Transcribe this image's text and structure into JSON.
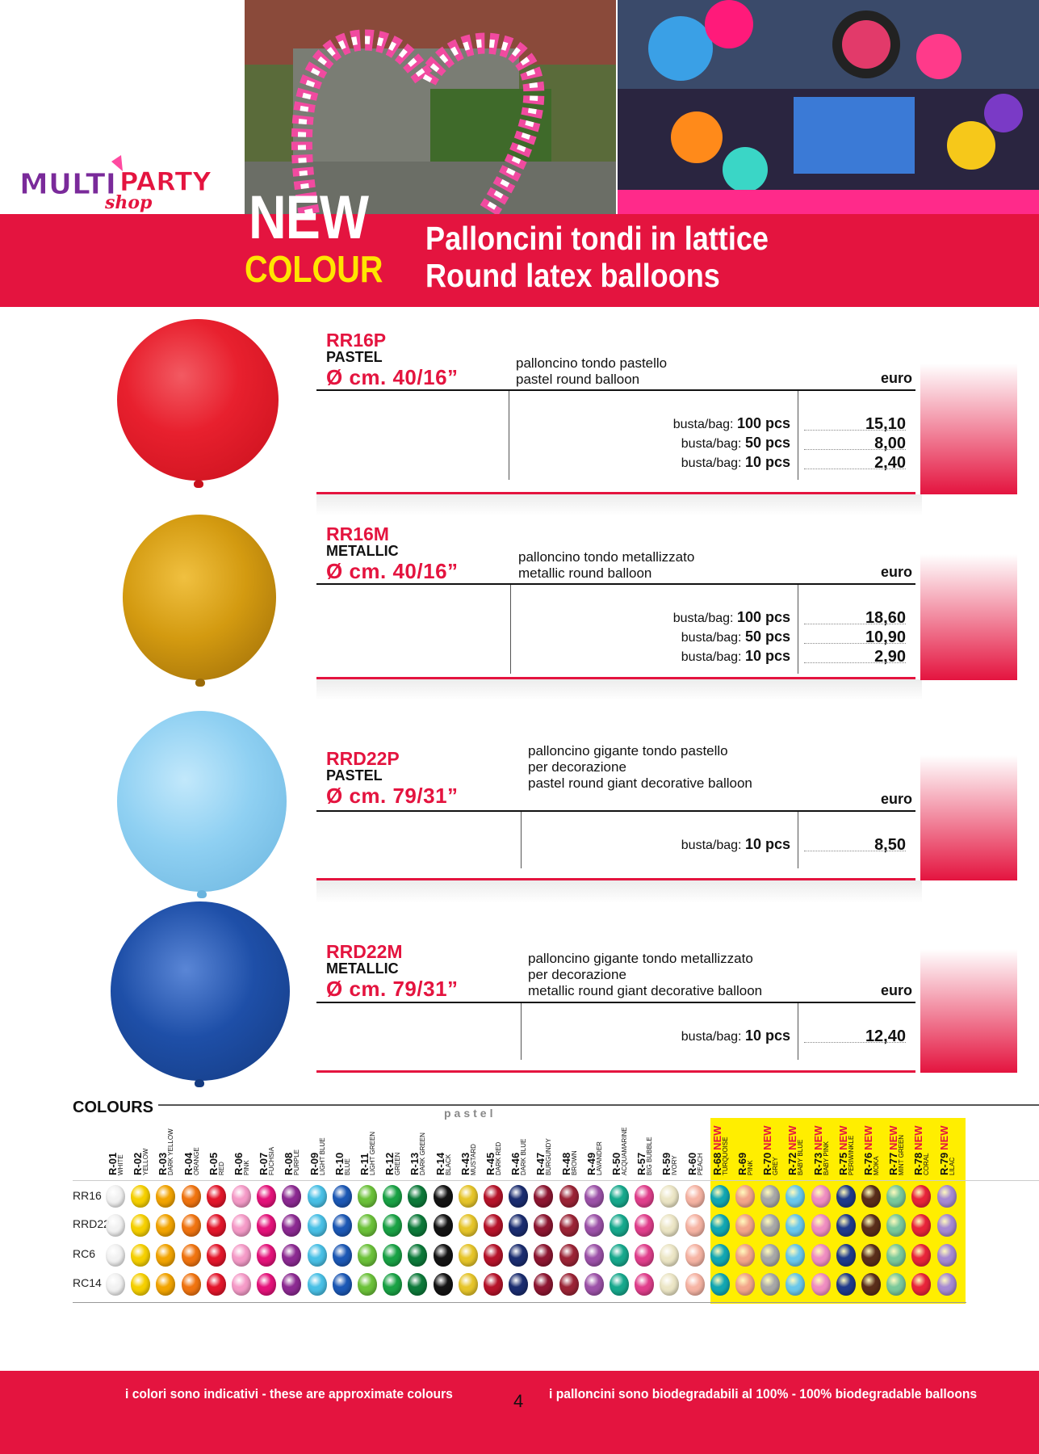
{
  "header": {
    "logo_text": "MULTIPARTY",
    "logo_sub": "shop",
    "new_word": "NEW",
    "colour_word": "COLOUR",
    "title_it": "Palloncini tondi in lattice",
    "title_en": "Round latex balloons"
  },
  "products": [
    {
      "code": "RR16P",
      "kind": "PASTEL",
      "size": "Ø cm. 40/16”",
      "desc": [
        "palloncino tondo pastello",
        "pastel round balloon"
      ],
      "euro_label": "euro",
      "balloon_color": "#e8202e",
      "prices": [
        {
          "prefix": "busta/bag:",
          "qty": "100 pcs",
          "price": "15,10"
        },
        {
          "prefix": "busta/bag:",
          "qty": "50 pcs",
          "price": "8,00"
        },
        {
          "prefix": "busta/bag:",
          "qty": "10 pcs",
          "price": "2,40"
        }
      ]
    },
    {
      "code": "RR16M",
      "kind": "METALLIC",
      "size": "Ø cm. 40/16”",
      "desc": [
        "palloncino tondo metallizzato",
        "metallic round balloon"
      ],
      "euro_label": "euro",
      "balloon_color": "#d39a10",
      "prices": [
        {
          "prefix": "busta/bag:",
          "qty": "100 pcs",
          "price": "18,60"
        },
        {
          "prefix": "busta/bag:",
          "qty": "50 pcs",
          "price": "10,90"
        },
        {
          "prefix": "busta/bag:",
          "qty": "10 pcs",
          "price": "2,90"
        }
      ]
    },
    {
      "code": "RRD22P",
      "kind": "PASTEL",
      "size": "Ø cm. 79/31”",
      "desc": [
        "palloncino gigante tondo pastello",
        "per decorazione",
        "pastel round giant decorative balloon"
      ],
      "euro_label": "euro",
      "balloon_color": "#8fd0f2",
      "prices": [
        {
          "prefix": "busta/bag:",
          "qty": "10 pcs",
          "price": "8,50"
        }
      ]
    },
    {
      "code": "RRD22M",
      "kind": "METALLIC",
      "size": "Ø cm. 79/31”",
      "desc": [
        "palloncino gigante tondo metallizzato",
        "per decorazione",
        "metallic round giant decorative balloon"
      ],
      "euro_label": "euro",
      "balloon_color": "#1e4fa8",
      "prices": [
        {
          "prefix": "busta/bag:",
          "qty": "10 pcs",
          "price": "12,40"
        }
      ]
    }
  ],
  "colours": {
    "title": "COLOURS",
    "pastel_label": "pastel",
    "row_labels": [
      "RR16",
      "RRD22",
      "RC6",
      "RC14"
    ],
    "new_tag": "NEW",
    "columns": [
      {
        "code": "R-01",
        "name": "WHITE",
        "hex": "#f2f2f2",
        "new": false
      },
      {
        "code": "R-02",
        "name": "YELLOW",
        "hex": "#f6d000",
        "new": false
      },
      {
        "code": "R-03",
        "name": "DARK YELLOW",
        "hex": "#f2a400",
        "new": false
      },
      {
        "code": "R-04",
        "name": "ORANGE",
        "hex": "#f07410",
        "new": false
      },
      {
        "code": "R-05",
        "name": "RED",
        "hex": "#e3162b",
        "new": false
      },
      {
        "code": "R-06",
        "name": "PINK",
        "hex": "#f59bc8",
        "new": false
      },
      {
        "code": "R-07",
        "name": "FUCHSIA",
        "hex": "#e4127a",
        "new": false
      },
      {
        "code": "R-08",
        "name": "PURPLE",
        "hex": "#8c2a92",
        "new": false
      },
      {
        "code": "R-09",
        "name": "LIGHT BLUE",
        "hex": "#49c0e6",
        "new": false
      },
      {
        "code": "R-10",
        "name": "BLUE",
        "hex": "#1c58b5",
        "new": false
      },
      {
        "code": "R-11",
        "name": "LIGHT GREEN",
        "hex": "#6cc23a",
        "new": false
      },
      {
        "code": "R-12",
        "name": "GREEN",
        "hex": "#1aa245",
        "new": false
      },
      {
        "code": "R-13",
        "name": "DARK GREEN",
        "hex": "#0d7a3a",
        "new": false
      },
      {
        "code": "R-14",
        "name": "BLACK",
        "hex": "#141414",
        "new": false
      },
      {
        "code": "R-43",
        "name": "MUSTARD",
        "hex": "#e6c52a",
        "new": false
      },
      {
        "code": "R-45",
        "name": "DARK RED",
        "hex": "#b5132a",
        "new": false
      },
      {
        "code": "R-46",
        "name": "DARK BLUE",
        "hex": "#1b2d70",
        "new": false
      },
      {
        "code": "R-47",
        "name": "BURGUNDY",
        "hex": "#8d1631",
        "new": false
      },
      {
        "code": "R-48",
        "name": "BROWN",
        "hex": "#9b2436",
        "new": false
      },
      {
        "code": "R-49",
        "name": "LAVANDER",
        "hex": "#9c52a8",
        "new": false
      },
      {
        "code": "R-50",
        "name": "ACQUAMARINE",
        "hex": "#17a98d",
        "new": false
      },
      {
        "code": "R-57",
        "name": "BIG BUBBLE",
        "hex": "#e03f8c",
        "new": false
      },
      {
        "code": "R-59",
        "name": "IVORY",
        "hex": "#ece6c6",
        "new": false
      },
      {
        "code": "R-60",
        "name": "PEACH",
        "hex": "#f6b4a4",
        "new": false
      },
      {
        "code": "R-68",
        "name": "TURQUOISE",
        "hex": "#12a7b3",
        "new": true
      },
      {
        "code": "R-69",
        "name": "PINK",
        "hex": "#f2a58a",
        "new": false
      },
      {
        "code": "R-70",
        "name": "GREY",
        "hex": "#a8a8a8",
        "new": true
      },
      {
        "code": "R-72",
        "name": "BABY BLUE",
        "hex": "#6ac7ea",
        "new": true
      },
      {
        "code": "R-73",
        "name": "BABY PINK",
        "hex": "#f08ec2",
        "new": true
      },
      {
        "code": "R-75",
        "name": "PERIWINKLE",
        "hex": "#1f3a8a",
        "new": true
      },
      {
        "code": "R-76",
        "name": "MOKA",
        "hex": "#5a2e1a",
        "new": true
      },
      {
        "code": "R-77",
        "name": "MINT GREEN",
        "hex": "#7ac89a",
        "new": true
      },
      {
        "code": "R-78",
        "name": "CORAL",
        "hex": "#e8243a",
        "new": true
      },
      {
        "code": "R-79",
        "name": "LILAC",
        "hex": "#a68ad2",
        "new": true
      }
    ]
  },
  "footer": {
    "left": "i colori sono indicativi - these are approximate colours",
    "page": "4",
    "right": "i palloncini sono biodegradabili al 100% - 100% biodegradable balloons"
  },
  "colors": {
    "brand_red": "#e4143f",
    "brand_yellow": "#ffe500"
  }
}
